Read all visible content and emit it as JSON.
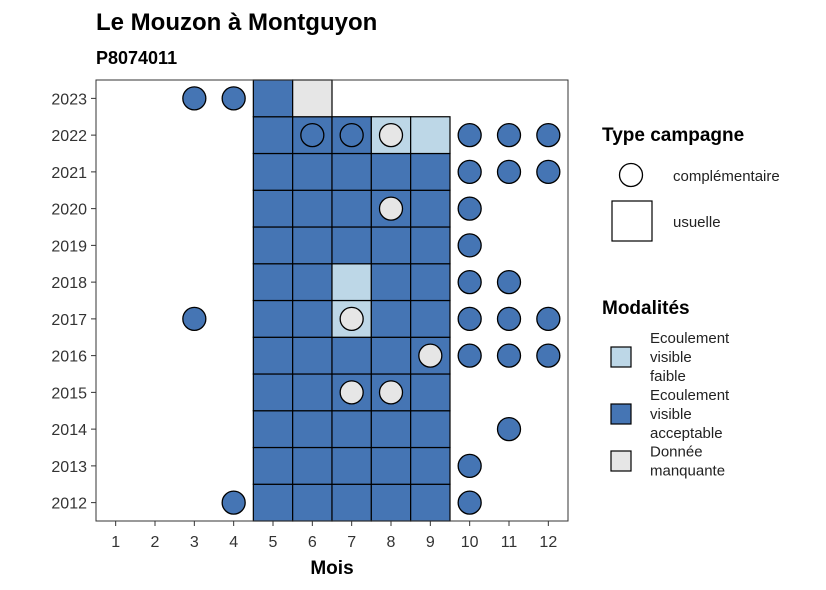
{
  "chart_data": {
    "type": "heatmap",
    "title": "Le Mouzon à Montguyon",
    "subtitle": "P8074011",
    "xlabel": "Mois",
    "ylabel": "",
    "x_ticks": [
      "1",
      "2",
      "3",
      "4",
      "5",
      "6",
      "7",
      "8",
      "9",
      "10",
      "11",
      "12"
    ],
    "y_ticks": [
      "2012",
      "2013",
      "2014",
      "2015",
      "2016",
      "2017",
      "2018",
      "2019",
      "2020",
      "2021",
      "2022",
      "2023"
    ],
    "xlim": [
      0.5,
      12.5
    ],
    "ylim": [
      2011.5,
      2023.5
    ],
    "grid": false,
    "colors": {
      "Ecoulement visible faible": "#bdd7e7",
      "Ecoulement visible acceptable": "#4575b4",
      "Donnée manquante": "#e6e6e6"
    },
    "usuelle": [
      {
        "year": 2012,
        "month": 5,
        "value": "Ecoulement visible acceptable"
      },
      {
        "year": 2012,
        "month": 6,
        "value": "Ecoulement visible acceptable"
      },
      {
        "year": 2012,
        "month": 7,
        "value": "Ecoulement visible acceptable"
      },
      {
        "year": 2012,
        "month": 8,
        "value": "Ecoulement visible acceptable"
      },
      {
        "year": 2012,
        "month": 9,
        "value": "Ecoulement visible acceptable"
      },
      {
        "year": 2013,
        "month": 5,
        "value": "Ecoulement visible acceptable"
      },
      {
        "year": 2013,
        "month": 6,
        "value": "Ecoulement visible acceptable"
      },
      {
        "year": 2013,
        "month": 7,
        "value": "Ecoulement visible acceptable"
      },
      {
        "year": 2013,
        "month": 8,
        "value": "Ecoulement visible acceptable"
      },
      {
        "year": 2013,
        "month": 9,
        "value": "Ecoulement visible acceptable"
      },
      {
        "year": 2014,
        "month": 5,
        "value": "Ecoulement visible acceptable"
      },
      {
        "year": 2014,
        "month": 6,
        "value": "Ecoulement visible acceptable"
      },
      {
        "year": 2014,
        "month": 7,
        "value": "Ecoulement visible acceptable"
      },
      {
        "year": 2014,
        "month": 8,
        "value": "Ecoulement visible acceptable"
      },
      {
        "year": 2014,
        "month": 9,
        "value": "Ecoulement visible acceptable"
      },
      {
        "year": 2015,
        "month": 5,
        "value": "Ecoulement visible acceptable"
      },
      {
        "year": 2015,
        "month": 6,
        "value": "Ecoulement visible acceptable"
      },
      {
        "year": 2015,
        "month": 7,
        "value": "Ecoulement visible acceptable"
      },
      {
        "year": 2015,
        "month": 8,
        "value": "Ecoulement visible acceptable"
      },
      {
        "year": 2015,
        "month": 9,
        "value": "Ecoulement visible acceptable"
      },
      {
        "year": 2016,
        "month": 5,
        "value": "Ecoulement visible acceptable"
      },
      {
        "year": 2016,
        "month": 6,
        "value": "Ecoulement visible acceptable"
      },
      {
        "year": 2016,
        "month": 7,
        "value": "Ecoulement visible acceptable"
      },
      {
        "year": 2016,
        "month": 8,
        "value": "Ecoulement visible acceptable"
      },
      {
        "year": 2016,
        "month": 9,
        "value": "Ecoulement visible acceptable"
      },
      {
        "year": 2017,
        "month": 5,
        "value": "Ecoulement visible acceptable"
      },
      {
        "year": 2017,
        "month": 6,
        "value": "Ecoulement visible acceptable"
      },
      {
        "year": 2017,
        "month": 7,
        "value": "Ecoulement visible faible"
      },
      {
        "year": 2017,
        "month": 8,
        "value": "Ecoulement visible acceptable"
      },
      {
        "year": 2017,
        "month": 9,
        "value": "Ecoulement visible acceptable"
      },
      {
        "year": 2018,
        "month": 5,
        "value": "Ecoulement visible acceptable"
      },
      {
        "year": 2018,
        "month": 6,
        "value": "Ecoulement visible acceptable"
      },
      {
        "year": 2018,
        "month": 7,
        "value": "Ecoulement visible faible"
      },
      {
        "year": 2018,
        "month": 8,
        "value": "Ecoulement visible acceptable"
      },
      {
        "year": 2018,
        "month": 9,
        "value": "Ecoulement visible acceptable"
      },
      {
        "year": 2019,
        "month": 5,
        "value": "Ecoulement visible acceptable"
      },
      {
        "year": 2019,
        "month": 6,
        "value": "Ecoulement visible acceptable"
      },
      {
        "year": 2019,
        "month": 7,
        "value": "Ecoulement visible acceptable"
      },
      {
        "year": 2019,
        "month": 8,
        "value": "Ecoulement visible acceptable"
      },
      {
        "year": 2019,
        "month": 9,
        "value": "Ecoulement visible acceptable"
      },
      {
        "year": 2020,
        "month": 5,
        "value": "Ecoulement visible acceptable"
      },
      {
        "year": 2020,
        "month": 6,
        "value": "Ecoulement visible acceptable"
      },
      {
        "year": 2020,
        "month": 7,
        "value": "Ecoulement visible acceptable"
      },
      {
        "year": 2020,
        "month": 8,
        "value": "Ecoulement visible acceptable"
      },
      {
        "year": 2020,
        "month": 9,
        "value": "Ecoulement visible acceptable"
      },
      {
        "year": 2021,
        "month": 5,
        "value": "Ecoulement visible acceptable"
      },
      {
        "year": 2021,
        "month": 6,
        "value": "Ecoulement visible acceptable"
      },
      {
        "year": 2021,
        "month": 7,
        "value": "Ecoulement visible acceptable"
      },
      {
        "year": 2021,
        "month": 8,
        "value": "Ecoulement visible acceptable"
      },
      {
        "year": 2021,
        "month": 9,
        "value": "Ecoulement visible acceptable"
      },
      {
        "year": 2022,
        "month": 5,
        "value": "Ecoulement visible acceptable"
      },
      {
        "year": 2022,
        "month": 6,
        "value": "Ecoulement visible acceptable"
      },
      {
        "year": 2022,
        "month": 7,
        "value": "Ecoulement visible acceptable"
      },
      {
        "year": 2022,
        "month": 8,
        "value": "Ecoulement visible faible"
      },
      {
        "year": 2022,
        "month": 9,
        "value": "Ecoulement visible faible"
      },
      {
        "year": 2023,
        "month": 5,
        "value": "Ecoulement visible acceptable"
      },
      {
        "year": 2023,
        "month": 6,
        "value": "Donnée manquante"
      }
    ],
    "complementaire": [
      {
        "year": 2012,
        "month": 4,
        "value": "Ecoulement visible acceptable"
      },
      {
        "year": 2012,
        "month": 10,
        "value": "Ecoulement visible acceptable"
      },
      {
        "year": 2013,
        "month": 10,
        "value": "Ecoulement visible acceptable"
      },
      {
        "year": 2014,
        "month": 11,
        "value": "Ecoulement visible acceptable"
      },
      {
        "year": 2015,
        "month": 7,
        "value": "Donnée manquante"
      },
      {
        "year": 2015,
        "month": 8,
        "value": "Donnée manquante"
      },
      {
        "year": 2016,
        "month": 9,
        "value": "Donnée manquante"
      },
      {
        "year": 2016,
        "month": 10,
        "value": "Ecoulement visible acceptable"
      },
      {
        "year": 2016,
        "month": 11,
        "value": "Ecoulement visible acceptable"
      },
      {
        "year": 2016,
        "month": 12,
        "value": "Ecoulement visible acceptable"
      },
      {
        "year": 2017,
        "month": 3,
        "value": "Ecoulement visible acceptable"
      },
      {
        "year": 2017,
        "month": 7,
        "value": "Donnée manquante"
      },
      {
        "year": 2017,
        "month": 10,
        "value": "Ecoulement visible acceptable"
      },
      {
        "year": 2017,
        "month": 11,
        "value": "Ecoulement visible acceptable"
      },
      {
        "year": 2017,
        "month": 12,
        "value": "Ecoulement visible acceptable"
      },
      {
        "year": 2018,
        "month": 10,
        "value": "Ecoulement visible acceptable"
      },
      {
        "year": 2018,
        "month": 11,
        "value": "Ecoulement visible acceptable"
      },
      {
        "year": 2019,
        "month": 10,
        "value": "Ecoulement visible acceptable"
      },
      {
        "year": 2020,
        "month": 8,
        "value": "Donnée manquante"
      },
      {
        "year": 2020,
        "month": 10,
        "value": "Ecoulement visible acceptable"
      },
      {
        "year": 2021,
        "month": 10,
        "value": "Ecoulement visible acceptable"
      },
      {
        "year": 2021,
        "month": 11,
        "value": "Ecoulement visible acceptable"
      },
      {
        "year": 2021,
        "month": 12,
        "value": "Ecoulement visible acceptable"
      },
      {
        "year": 2022,
        "month": 6,
        "value": "Ecoulement visible acceptable"
      },
      {
        "year": 2022,
        "month": 7,
        "value": "Ecoulement visible acceptable"
      },
      {
        "year": 2022,
        "month": 8,
        "value": "Donnée manquante"
      },
      {
        "year": 2022,
        "month": 10,
        "value": "Ecoulement visible acceptable"
      },
      {
        "year": 2022,
        "month": 11,
        "value": "Ecoulement visible acceptable"
      },
      {
        "year": 2022,
        "month": 12,
        "value": "Ecoulement visible acceptable"
      },
      {
        "year": 2023,
        "month": 3,
        "value": "Ecoulement visible acceptable"
      },
      {
        "year": 2023,
        "month": 4,
        "value": "Ecoulement visible acceptable"
      }
    ],
    "legend": {
      "placement": "right",
      "type_title": "Type campagne",
      "type_items": [
        {
          "key": "complementaire",
          "label": "complémentaire",
          "shape": "circle"
        },
        {
          "key": "usuelle",
          "label": "usuelle",
          "shape": "square"
        }
      ],
      "mod_title": "Modalités",
      "mod_items": [
        {
          "key": "Ecoulement visible faible",
          "lines": [
            "Ecoulement",
            "visible",
            "faible"
          ]
        },
        {
          "key": "Ecoulement visible acceptable",
          "lines": [
            "Ecoulement",
            "visible",
            "acceptable"
          ]
        },
        {
          "key": "Donnée manquante",
          "lines": [
            "Donnée",
            "manquante"
          ]
        }
      ]
    }
  }
}
